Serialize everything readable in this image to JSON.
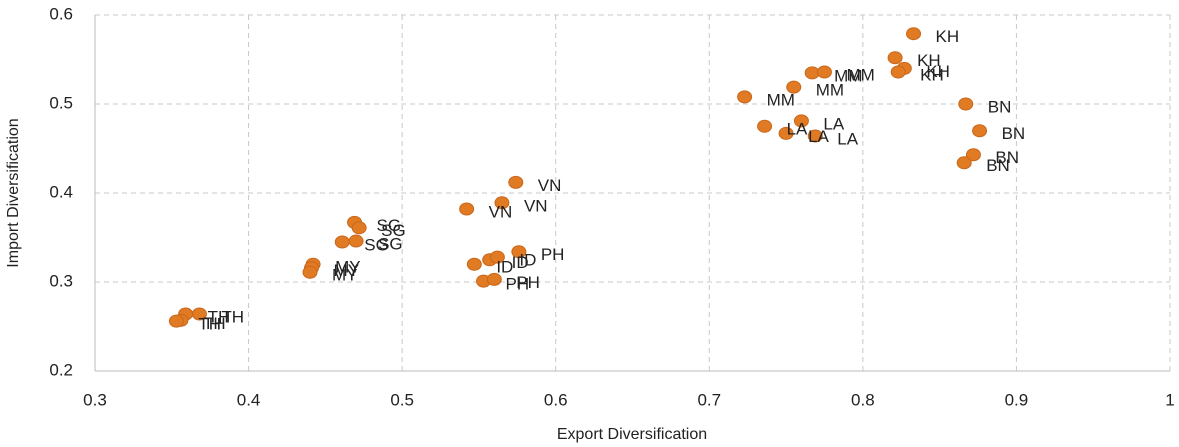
{
  "chart_data": {
    "type": "scatter",
    "x_label": "Export Diversification",
    "y_label": "Import Diversification",
    "color": "#e07b24",
    "grid": true,
    "xlim": [
      0.3,
      1
    ],
    "xticks": [
      0.3,
      0.4,
      0.5,
      0.6,
      0.7,
      0.8,
      0.9,
      1
    ],
    "ylim": [
      0.2,
      0.6
    ],
    "yticks": [
      0.2,
      0.3,
      0.4,
      0.5,
      0.6
    ],
    "x": [
      0.833,
      0.821,
      0.827,
      0.823,
      0.767,
      0.775,
      0.755,
      0.723,
      0.736,
      0.76,
      0.75,
      0.769,
      0.867,
      0.876,
      0.872,
      0.866,
      0.574,
      0.565,
      0.542,
      0.547,
      0.557,
      0.562,
      0.576,
      0.553,
      0.56,
      0.469,
      0.472,
      0.47,
      0.461,
      0.442,
      0.441,
      0.44,
      0.368,
      0.359,
      0.356,
      0.353
    ],
    "values": [
      0.579,
      0.552,
      0.54,
      0.536,
      0.535,
      0.536,
      0.519,
      0.508,
      0.475,
      0.481,
      0.467,
      0.464,
      0.5,
      0.47,
      0.443,
      0.434,
      0.412,
      0.389,
      0.382,
      0.32,
      0.325,
      0.328,
      0.334,
      0.301,
      0.303,
      0.367,
      0.361,
      0.346,
      0.345,
      0.32,
      0.316,
      0.311,
      0.264,
      0.264,
      0.257,
      0.256
    ],
    "labels": [
      "KH",
      "KH",
      "KH",
      "KH",
      "MM",
      "MM",
      "MM",
      "MM",
      "LA",
      "LA",
      "LA",
      "LA",
      "BN",
      "BN",
      "BN",
      "BN",
      "VN",
      "VN",
      "VN",
      "ID",
      "ID",
      "ID",
      "PH",
      "PH",
      "PH",
      "SG",
      "SG",
      "SG",
      "SG",
      "MY",
      "MY",
      "MY",
      "TH",
      "TH",
      "TH",
      "TH"
    ]
  }
}
